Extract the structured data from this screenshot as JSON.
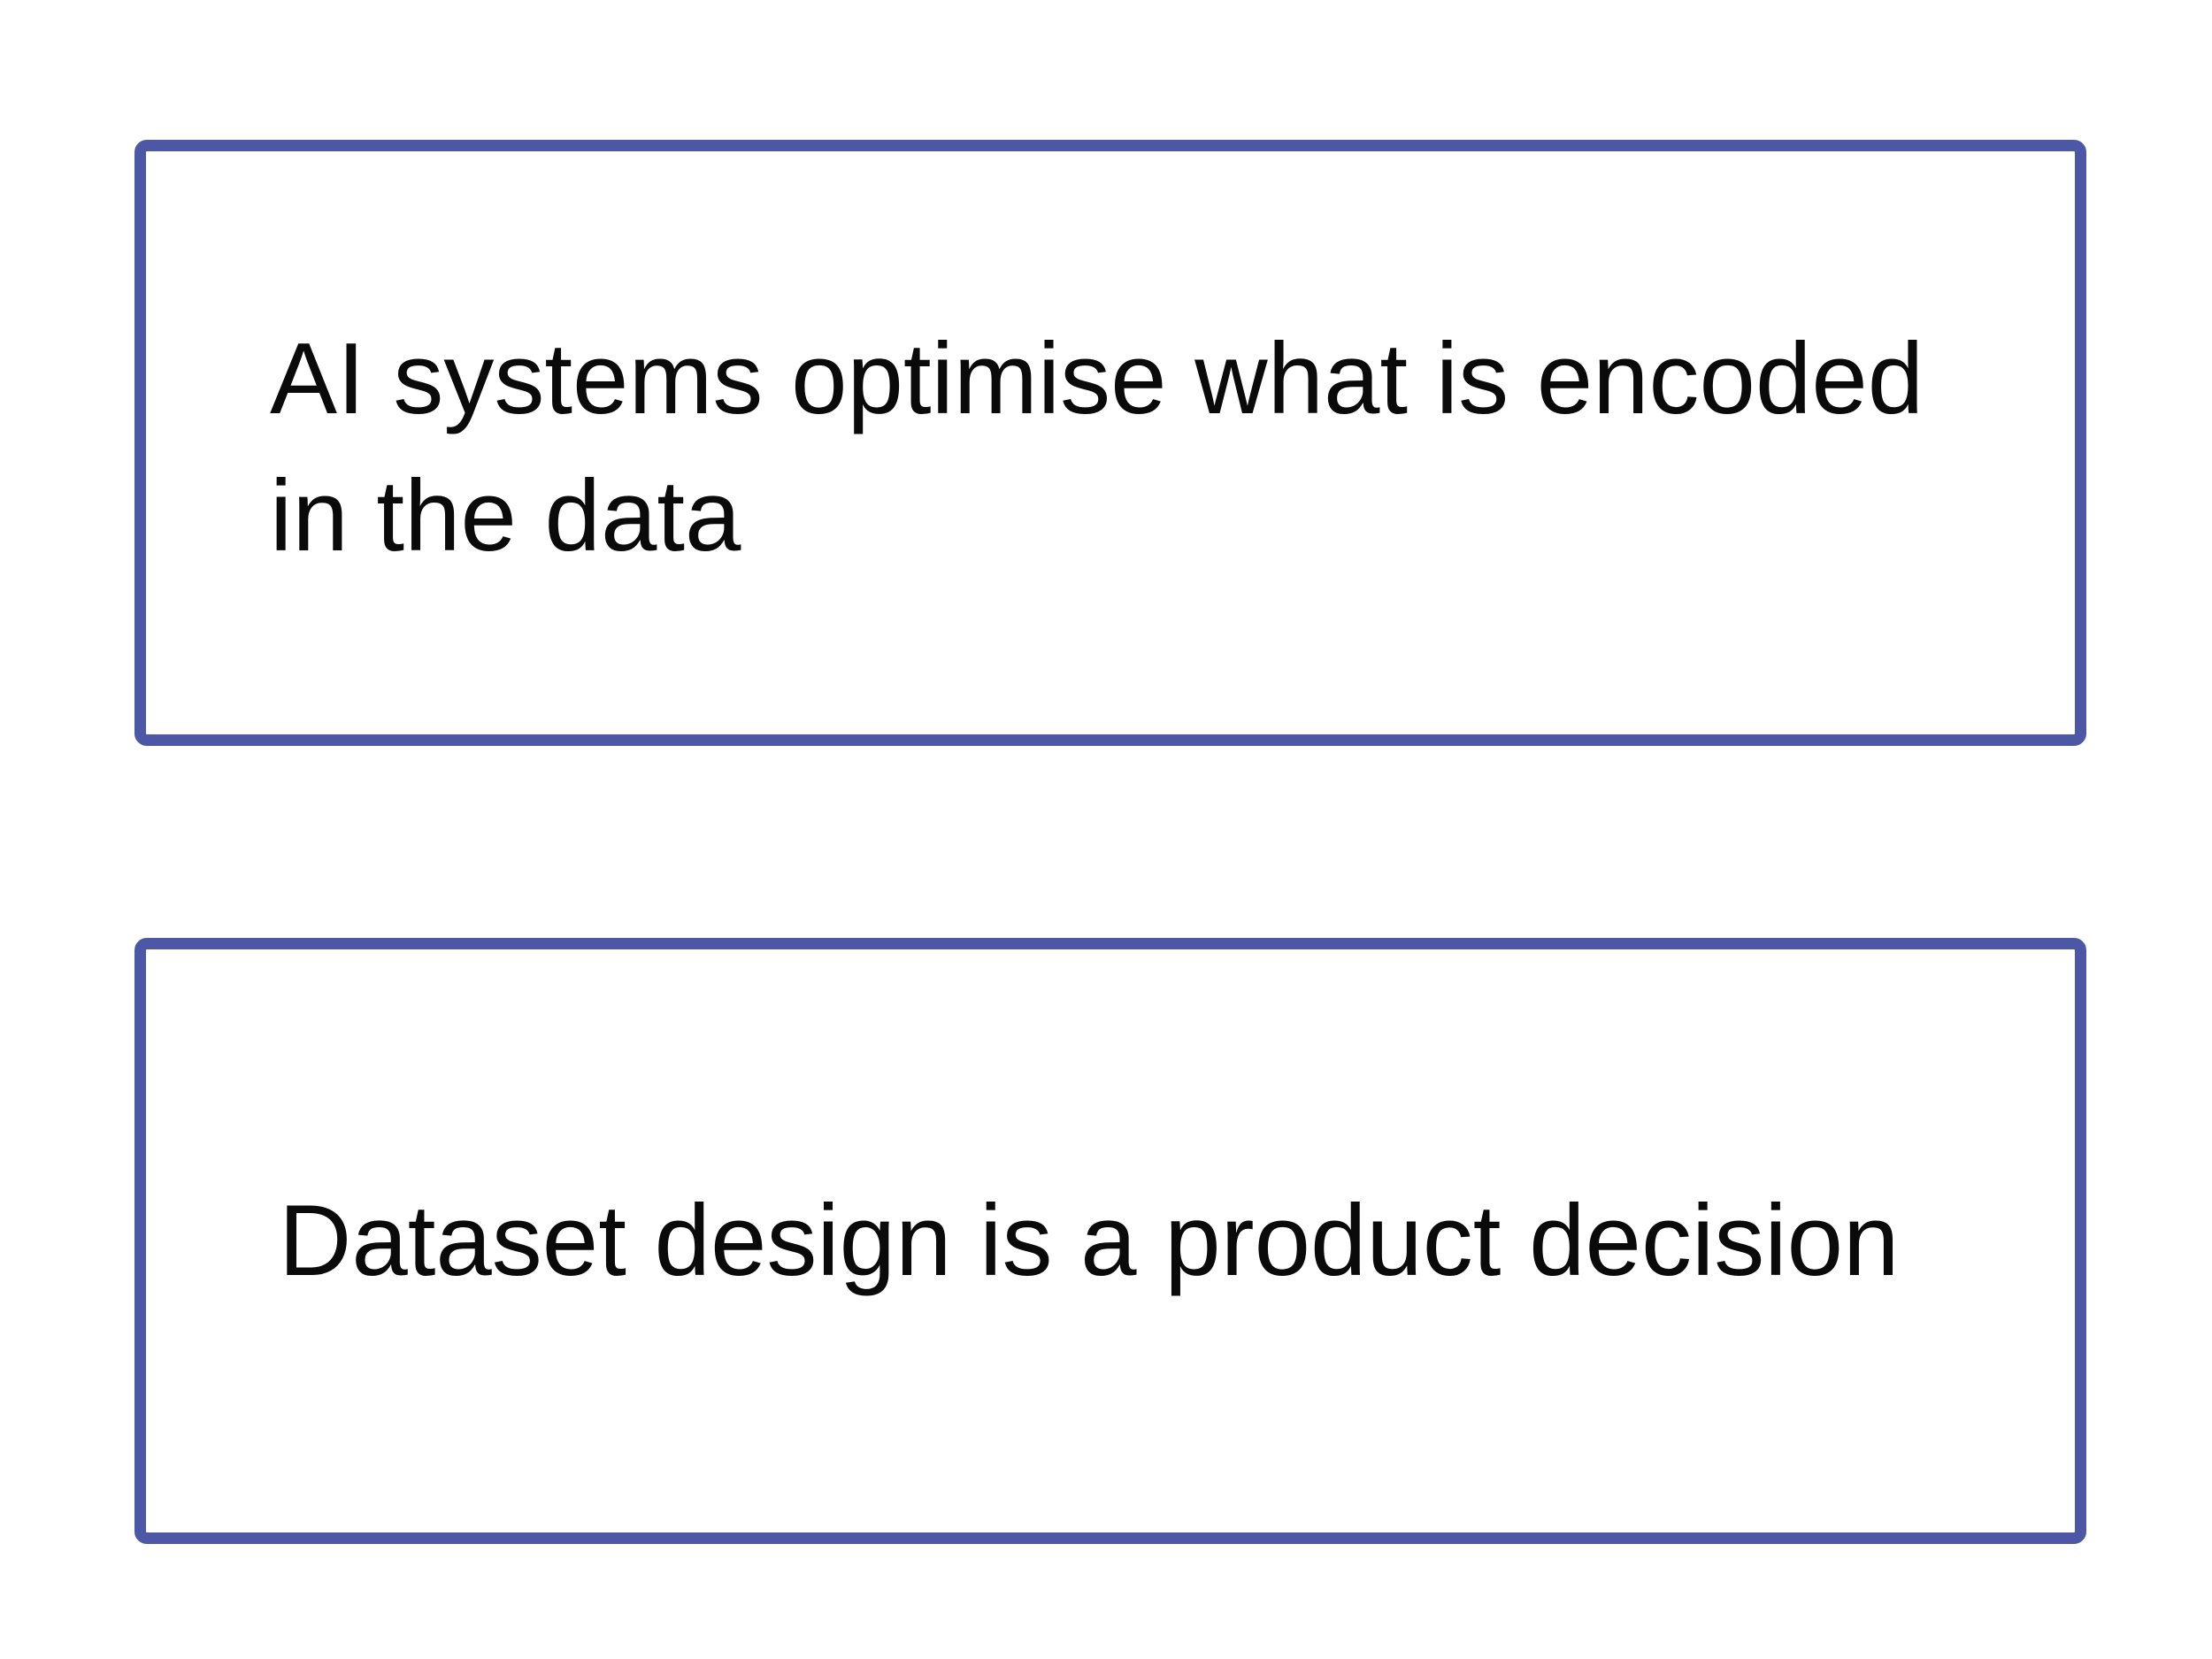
{
  "border_color": "#4c58a6",
  "boxes": [
    {
      "lines": [
        "AI systems optimise what is encoded",
        "in the data"
      ]
    },
    {
      "lines": [
        "Dataset design is a product decision"
      ]
    }
  ]
}
